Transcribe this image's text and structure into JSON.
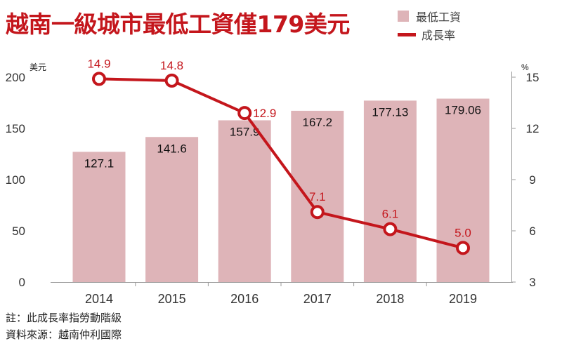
{
  "title": "越南一級城市最低工資僅179美元",
  "colors": {
    "bar": "#deb4b8",
    "line": "#c4161c",
    "axis": "#999999"
  },
  "legend": {
    "bar_label": "最低工資",
    "line_label": "成長率"
  },
  "notes": {
    "line1": "註：此成長率指勞動階級",
    "line2": "資料來源：越南仲利國際"
  },
  "chart_data": {
    "type": "bar+line",
    "categories": [
      "2014",
      "2015",
      "2016",
      "2017",
      "2018",
      "2019"
    ],
    "series": [
      {
        "name": "最低工資",
        "type": "bar",
        "axis": "left",
        "values": [
          127.1,
          141.6,
          157.9,
          167.2,
          177.13,
          179.06
        ],
        "labels": [
          "127.1",
          "141.6",
          "157.9",
          "167.2",
          "177.13",
          "179.06"
        ]
      },
      {
        "name": "成長率",
        "type": "line",
        "axis": "right",
        "values": [
          14.9,
          14.8,
          12.9,
          7.1,
          6.1,
          5.0
        ],
        "labels": [
          "14.9",
          "14.8",
          "12.9",
          "7.1",
          "6.1",
          "5.0"
        ]
      }
    ],
    "y_left": {
      "unit": "美元",
      "min": 0,
      "max": 200,
      "ticks": [
        0,
        50,
        100,
        150,
        200
      ]
    },
    "y_right": {
      "unit": "%",
      "min": 3,
      "max": 15,
      "ticks": [
        3,
        6,
        9,
        12,
        15
      ]
    }
  }
}
